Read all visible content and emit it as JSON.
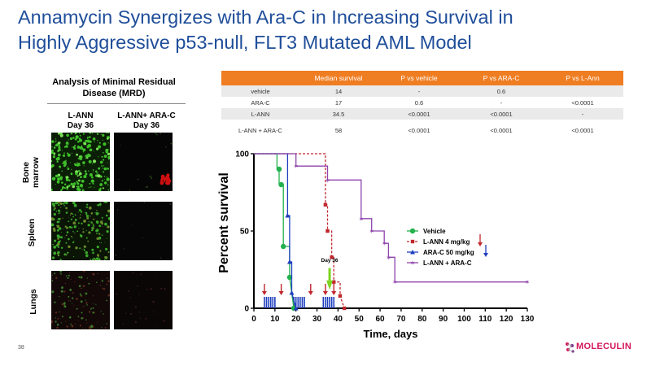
{
  "slide": {
    "title_line1": "Annamycin Synergizes with Ara-C in Increasing Survival in",
    "title_line2": "Highly Aggressive p53-null, FLT3 Mutated AML Model",
    "page_number": "38",
    "logo_text": "MOLECULIN"
  },
  "mrd": {
    "title_line1": "Analysis of Minimal Residual",
    "title_line2": "Disease (MRD)",
    "col1_line1": "L-ANN",
    "col1_line2": "Day 36",
    "col2_line1": "L-ANN+ ARA-C",
    "col2_line2": "Day 36",
    "row_bone_line1": "Bone",
    "row_bone_line2": "marrow",
    "row_spleen": "Spleen",
    "row_lungs": "Lungs"
  },
  "table": {
    "headers": [
      "",
      "Median survival",
      "P vs vehicle",
      "P vs ARA-C",
      "P vs L-Ann"
    ],
    "rows": [
      [
        "vehicle",
        "14",
        "-",
        "0.6",
        ""
      ],
      [
        "ARA-C",
        "17",
        "0.6",
        "-",
        "<0.0001"
      ],
      [
        "L-ANN",
        "34.5",
        "<0.0001",
        "<0.0001",
        "-"
      ],
      [
        "L-ANN + ARA-C",
        "58",
        "<0.0001",
        "<0.0001",
        "<0.0001"
      ]
    ]
  },
  "chart_data": {
    "type": "line",
    "step": true,
    "ylabel": "Percent survival",
    "xlabel": "Time, days",
    "xlim": [
      0,
      130
    ],
    "ylim": [
      0,
      100
    ],
    "xticks": [
      "0",
      "10",
      "20",
      "30",
      "40",
      "50",
      "60",
      "70",
      "80",
      "90",
      "100",
      "110",
      "120",
      "130"
    ],
    "yticks": [
      "0",
      "50",
      "100"
    ],
    "annotation": "Day 36",
    "legend_position": "right",
    "series": [
      {
        "name": "Vehicle",
        "color": "#22b14c",
        "marker": "circle",
        "dash": false,
        "x": [
          0,
          11,
          11,
          12,
          12,
          14,
          14,
          17,
          17,
          19
        ],
        "y": [
          100,
          100,
          90,
          90,
          80,
          80,
          40,
          40,
          20,
          0
        ],
        "pts": [
          [
            12,
            90
          ],
          [
            13,
            80
          ],
          [
            14,
            40
          ],
          [
            17,
            20
          ],
          [
            19,
            0
          ]
        ]
      },
      {
        "name": "L-ANN 4 mg/kg",
        "color": "#c0272d",
        "marker": "square",
        "dash": true,
        "x": [
          0,
          34,
          34,
          35,
          35,
          37,
          37,
          38,
          38,
          41,
          41,
          43
        ],
        "y": [
          100,
          100,
          67,
          67,
          50,
          50,
          33,
          33,
          17,
          17,
          8,
          0
        ],
        "pts": [
          [
            34,
            67
          ],
          [
            35,
            50
          ],
          [
            37,
            33
          ],
          [
            38,
            17
          ],
          [
            41,
            8
          ],
          [
            43,
            0
          ]
        ]
      },
      {
        "name": "ARA-C 50 mg/kg",
        "color": "#1f3fbf",
        "marker": "triangle",
        "dash": false,
        "x": [
          0,
          16,
          16,
          17,
          17,
          18,
          18,
          20
        ],
        "y": [
          100,
          100,
          60,
          60,
          30,
          30,
          10,
          0
        ],
        "pts": [
          [
            16,
            60
          ],
          [
            17,
            30
          ],
          [
            18,
            10
          ],
          [
            20,
            0
          ]
        ]
      },
      {
        "name": "L-ANN + ARA-C",
        "color": "#8e44ad",
        "marker": "star",
        "dash": false,
        "x": [
          0,
          20,
          20,
          35,
          35,
          51,
          51,
          56,
          56,
          62,
          62,
          64,
          64,
          67,
          67,
          130
        ],
        "y": [
          100,
          100,
          92,
          92,
          83,
          83,
          58,
          58,
          50,
          50,
          42,
          42,
          33,
          33,
          17,
          17
        ],
        "pts": [
          [
            20,
            92
          ],
          [
            35,
            83
          ],
          [
            51,
            58
          ],
          [
            56,
            50
          ],
          [
            62,
            42
          ],
          [
            64,
            33
          ],
          [
            67,
            17
          ],
          [
            130,
            17
          ]
        ]
      }
    ],
    "dosing_red_days": [
      5,
      13,
      27,
      34,
      38
    ],
    "dosing_blue_days": [
      5,
      6,
      7,
      8,
      9,
      10,
      19,
      20,
      21,
      22,
      23,
      24,
      33,
      34,
      35,
      36,
      37,
      38
    ]
  }
}
